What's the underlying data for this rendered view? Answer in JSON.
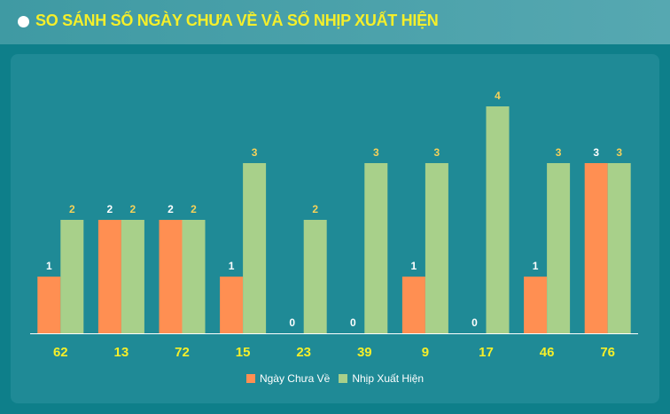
{
  "header": {
    "title": "SO SÁNH SỐ NGÀY CHƯA VỀ VÀ SỐ NHỊP XUẤT HIỆN"
  },
  "colors": {
    "background": "#0e7f8a",
    "panel": "#1f8a96",
    "title": "#f5ef2a",
    "series_days": "#ff8f52",
    "series_rhythm": "#a8d08a",
    "label_days": "#ffffff",
    "label_rhythm": "#f5d25a",
    "category_label": "#f5ef2a"
  },
  "chart_data": {
    "type": "bar",
    "categories": [
      "62",
      "13",
      "72",
      "15",
      "23",
      "39",
      "9",
      "17",
      "46",
      "76"
    ],
    "series": [
      {
        "name": "Ngày Chưa Về",
        "values": [
          1,
          2,
          2,
          1,
          0,
          0,
          1,
          0,
          1,
          3
        ]
      },
      {
        "name": "Nhịp Xuất Hiện",
        "values": [
          2,
          2,
          2,
          3,
          2,
          3,
          3,
          4,
          3,
          3
        ]
      }
    ],
    "ylim": [
      0,
      4.5
    ],
    "grid": false,
    "legend": "bottom"
  }
}
